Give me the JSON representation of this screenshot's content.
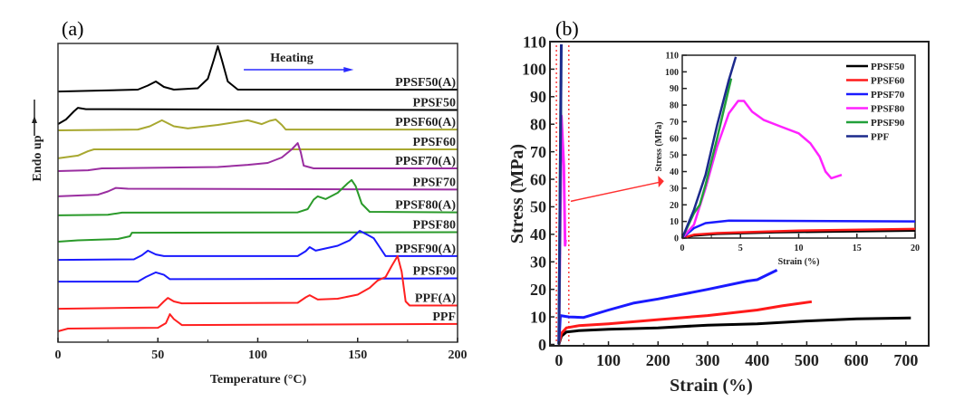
{
  "chart_data": [
    {
      "type": "line",
      "panel_label": "(a)",
      "title": "",
      "xlabel": "Temperature (°C)",
      "ylabel": "Endo up",
      "xlim": [
        0,
        200
      ],
      "ylim": [
        0,
        110
      ],
      "y_units": "heat flow, arbitrary units (stacked)",
      "xticks": [
        0,
        50,
        100,
        150,
        200
      ],
      "annotation": "Heating",
      "series": [
        {
          "name": "PPSF50(A)",
          "color": "#000000",
          "points": [
            [
              0,
              92.3
            ],
            [
              40,
              93
            ],
            [
              45,
              94.5
            ],
            [
              49,
              96
            ],
            [
              53,
              94
            ],
            [
              58,
              93
            ],
            [
              70,
              93.5
            ],
            [
              75,
              97
            ],
            [
              78,
              104
            ],
            [
              80,
              109
            ],
            [
              82,
              104
            ],
            [
              85,
              96
            ],
            [
              90,
              93
            ],
            [
              200,
              93
            ]
          ]
        },
        {
          "name": "PPSF50",
          "color": "#000000",
          "points": [
            [
              0,
              80.3
            ],
            [
              4,
              82
            ],
            [
              8,
              85
            ],
            [
              10,
              86.3
            ],
            [
              14,
              85.8
            ],
            [
              200,
              85.5
            ]
          ]
        },
        {
          "name": "PPSF60(A)",
          "color": "#a8a830",
          "points": [
            [
              0,
              78
            ],
            [
              40,
              78.3
            ],
            [
              46,
              79.5
            ],
            [
              52,
              81.7
            ],
            [
              58,
              79.5
            ],
            [
              65,
              78.7
            ],
            [
              80,
              80
            ],
            [
              95,
              81.7
            ],
            [
              100,
              80.7
            ],
            [
              102,
              80.3
            ],
            [
              106,
              81.5
            ],
            [
              109,
              82
            ],
            [
              112,
              80
            ],
            [
              114,
              78.3
            ],
            [
              200,
              78.3
            ]
          ]
        },
        {
          "name": "PPSF60",
          "color": "#a8a830",
          "points": [
            [
              0,
              67.7
            ],
            [
              10,
              68.7
            ],
            [
              15,
              70.3
            ],
            [
              18,
              71
            ],
            [
              200,
              71
            ]
          ]
        },
        {
          "name": "PPSF70(A)",
          "color": "#9a2ea0",
          "points": [
            [
              0,
              63
            ],
            [
              15,
              63.3
            ],
            [
              22,
              64
            ],
            [
              80,
              64.5
            ],
            [
              95,
              65.3
            ],
            [
              105,
              66
            ],
            [
              112,
              68
            ],
            [
              117,
              71
            ],
            [
              120,
              73.3
            ],
            [
              121.5,
              70
            ],
            [
              123,
              65
            ],
            [
              128,
              64
            ],
            [
              200,
              64
            ]
          ]
        },
        {
          "name": "PPSF70",
          "color": "#9a2ea0",
          "points": [
            [
              0,
              53.7
            ],
            [
              20,
              54.3
            ],
            [
              25,
              55.5
            ],
            [
              29,
              56.8
            ],
            [
              35,
              56.5
            ],
            [
              200,
              56.2
            ]
          ]
        },
        {
          "name": "PPSF80(A)",
          "color": "#2a9a2a",
          "points": [
            [
              0,
              46.7
            ],
            [
              25,
              46.9
            ],
            [
              32,
              47.7
            ],
            [
              120,
              47.8
            ],
            [
              125,
              49
            ],
            [
              128,
              52.5
            ],
            [
              130,
              53.7
            ],
            [
              134,
              52.7
            ],
            [
              140,
              55
            ],
            [
              145,
              58.5
            ],
            [
              147,
              59.7
            ],
            [
              149,
              57.5
            ],
            [
              152,
              51
            ],
            [
              156,
              48
            ],
            [
              200,
              47.8
            ]
          ]
        },
        {
          "name": "PPSF80",
          "color": "#2a9a2a",
          "points": [
            [
              0,
              37
            ],
            [
              10,
              37.5
            ],
            [
              30,
              38
            ],
            [
              36,
              39
            ],
            [
              37,
              40.3
            ],
            [
              200,
              40.5
            ]
          ]
        },
        {
          "name": "PPSF90(A)",
          "color": "#1a1aff",
          "points": [
            [
              0,
              30.3
            ],
            [
              38,
              30.5
            ],
            [
              42,
              32
            ],
            [
              45,
              33.7
            ],
            [
              49,
              32.3
            ],
            [
              53,
              31.7
            ],
            [
              120,
              31.7
            ],
            [
              124,
              33.5
            ],
            [
              126,
              35
            ],
            [
              129,
              33.7
            ],
            [
              140,
              35.5
            ],
            [
              146,
              37.5
            ],
            [
              151,
              41
            ],
            [
              155,
              39.5
            ],
            [
              158,
              38.3
            ],
            [
              161,
              35
            ],
            [
              164,
              31.7
            ],
            [
              200,
              31.7
            ]
          ]
        },
        {
          "name": "PPSF90",
          "color": "#1a1aff",
          "points": [
            [
              0,
              22.3
            ],
            [
              40,
              22.3
            ],
            [
              44,
              24
            ],
            [
              49,
              25.7
            ],
            [
              53,
              24.8
            ],
            [
              56,
              23.2
            ],
            [
              200,
              23.5
            ]
          ]
        },
        {
          "name": "PPF(A)",
          "color": "#ff2020",
          "points": [
            [
              0,
              12.3
            ],
            [
              50,
              12.8
            ],
            [
              53,
              15
            ],
            [
              55,
              16.3
            ],
            [
              58,
              15
            ],
            [
              62,
              14.3
            ],
            [
              120,
              14.5
            ],
            [
              124,
              16.5
            ],
            [
              126,
              17.3
            ],
            [
              130,
              15.7
            ],
            [
              140,
              16
            ],
            [
              150,
              17.5
            ],
            [
              156,
              20
            ],
            [
              160,
              22.7
            ],
            [
              164,
              24
            ],
            [
              167,
              28
            ],
            [
              170,
              31.7
            ],
            [
              172,
              26
            ],
            [
              174,
              15
            ],
            [
              176,
              13.5
            ],
            [
              200,
              13.5
            ]
          ]
        },
        {
          "name": "PPF",
          "color": "#ff2020",
          "points": [
            [
              0,
              4
            ],
            [
              5,
              5
            ],
            [
              50,
              5.3
            ],
            [
              54,
              7
            ],
            [
              56,
              10.3
            ],
            [
              58,
              8.5
            ],
            [
              62,
              6.3
            ],
            [
              200,
              6.7
            ]
          ]
        }
      ]
    },
    {
      "type": "line",
      "panel_label": "(b)",
      "title": "",
      "xlabel": "Strain (%)",
      "ylabel": "Stress (MPa)",
      "xlim": [
        -18,
        746
      ],
      "ylim": [
        -0.5,
        110
      ],
      "xticks": [
        0,
        100,
        200,
        300,
        400,
        500,
        600,
        700
      ],
      "yticks": [
        0,
        10,
        20,
        30,
        40,
        50,
        60,
        70,
        80,
        90,
        100,
        110
      ],
      "series": [
        {
          "name": "PPSF50",
          "color": "#000000",
          "points": [
            [
              0,
              0
            ],
            [
              5,
              3
            ],
            [
              15,
              4.5
            ],
            [
              40,
              5
            ],
            [
              100,
              5.5
            ],
            [
              200,
              6
            ],
            [
              300,
              7
            ],
            [
              400,
              7.5
            ],
            [
              500,
              8.5
            ],
            [
              600,
              9.3
            ],
            [
              710,
              9.6
            ]
          ]
        },
        {
          "name": "PPSF60",
          "color": "#ff1a1a",
          "points": [
            [
              0,
              0
            ],
            [
              5,
              4
            ],
            [
              15,
              6
            ],
            [
              40,
              6.8
            ],
            [
              100,
              7.5
            ],
            [
              200,
              9
            ],
            [
              300,
              10.5
            ],
            [
              400,
              12.5
            ],
            [
              450,
              14
            ],
            [
              510,
              15.5
            ]
          ]
        },
        {
          "name": "PPSF70",
          "color": "#1a1aff",
          "points": [
            [
              0,
              0
            ],
            [
              3,
              10.5
            ],
            [
              20,
              10
            ],
            [
              50,
              9.8
            ],
            [
              100,
              12.5
            ],
            [
              150,
              15
            ],
            [
              200,
              16.5
            ],
            [
              300,
              20
            ],
            [
              380,
              23
            ],
            [
              400,
              23.5
            ],
            [
              440,
              27
            ]
          ]
        },
        {
          "name": "PPSF80",
          "color": "#ff22ff",
          "points": [
            [
              0,
              0
            ],
            [
              5,
              83
            ],
            [
              10,
              65
            ],
            [
              12.5,
              36
            ],
            [
              13.5,
              38
            ]
          ]
        },
        {
          "name": "PPSF90",
          "color": "#22a03a",
          "points": [
            [
              0,
              0
            ],
            [
              4.2,
              96
            ]
          ]
        },
        {
          "name": "PPF",
          "color": "#1c2a8c",
          "points": [
            [
              0,
              0
            ],
            [
              4.8,
              109
            ]
          ]
        }
      ],
      "inset": {
        "xlabel": "Strain (%)",
        "ylabel": "Stress (MPa)",
        "xlim": [
          0,
          20
        ],
        "ylim": [
          0,
          110
        ],
        "xticks": [
          0,
          5,
          10,
          15,
          20
        ],
        "yticks": [
          0,
          10,
          20,
          30,
          40,
          50,
          60,
          70,
          80,
          90,
          100,
          110
        ],
        "legend_position": "top-right",
        "series": [
          {
            "name": "PPSF50",
            "color": "#000000",
            "points": [
              [
                0,
                0
              ],
              [
                1,
                1.5
              ],
              [
                3,
                2.5
              ],
              [
                8,
                3.5
              ],
              [
                20,
                4.5
              ]
            ]
          },
          {
            "name": "PPSF60",
            "color": "#ff1a1a",
            "points": [
              [
                0,
                0
              ],
              [
                1,
                2
              ],
              [
                3,
                3
              ],
              [
                10,
                4.5
              ],
              [
                20,
                5.5
              ]
            ]
          },
          {
            "name": "PPSF70",
            "color": "#1a1aff",
            "points": [
              [
                0,
                0
              ],
              [
                1,
                6
              ],
              [
                2,
                9
              ],
              [
                4,
                10.5
              ],
              [
                20,
                10
              ]
            ]
          },
          {
            "name": "PPSF80",
            "color": "#ff22ff",
            "points": [
              [
                0,
                0
              ],
              [
                1,
                8
              ],
              [
                2,
                30
              ],
              [
                3,
                55
              ],
              [
                4,
                75
              ],
              [
                4.8,
                82.5
              ],
              [
                5.3,
                82.5
              ],
              [
                6,
                76
              ],
              [
                7,
                71
              ],
              [
                8.5,
                67
              ],
              [
                10,
                63
              ],
              [
                11,
                57
              ],
              [
                11.8,
                49
              ],
              [
                12.3,
                40
              ],
              [
                12.8,
                36
              ],
              [
                13.7,
                38
              ]
            ]
          },
          {
            "name": "PPSF90",
            "color": "#22a03a",
            "points": [
              [
                0,
                0
              ],
              [
                1,
                15
              ],
              [
                1.5,
                20
              ],
              [
                2,
                32
              ],
              [
                3,
                60
              ],
              [
                4.2,
                96
              ]
            ]
          },
          {
            "name": "PPF",
            "color": "#1c2a8c",
            "points": [
              [
                0,
                0
              ],
              [
                1,
                17
              ],
              [
                2,
                38
              ],
              [
                3,
                68
              ],
              [
                4,
                95
              ],
              [
                4.6,
                109
              ]
            ]
          }
        ]
      }
    }
  ]
}
